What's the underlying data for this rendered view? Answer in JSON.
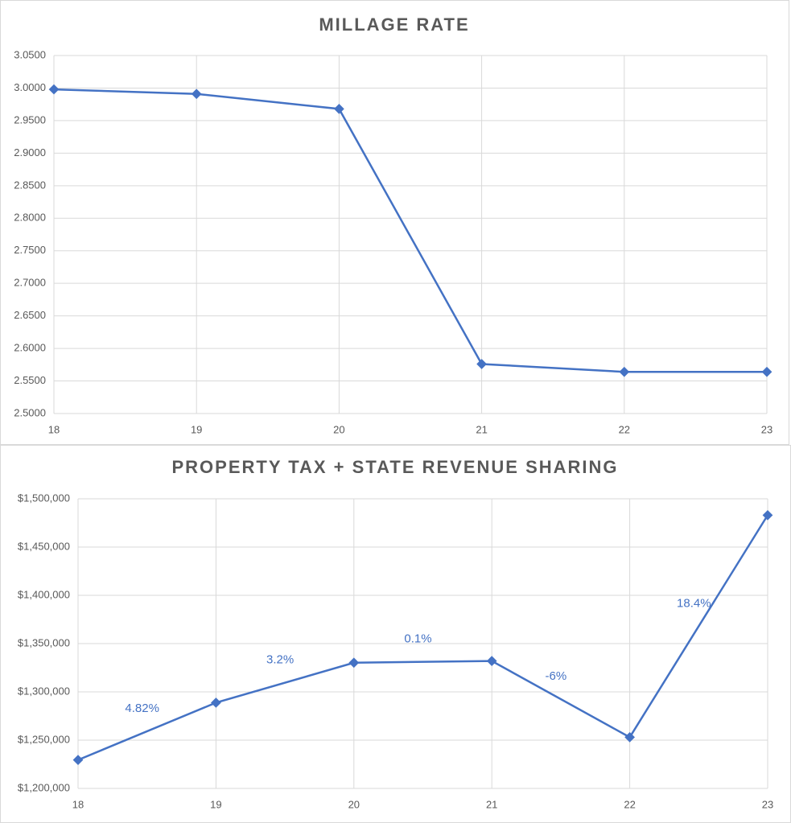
{
  "chart_data": [
    {
      "type": "line",
      "title": "MILLAGE RATE",
      "x": [
        18,
        19,
        20,
        21,
        22,
        23
      ],
      "series": [
        {
          "name": "Millage Rate",
          "color": "#4472c4",
          "values": [
            2.998,
            2.991,
            2.968,
            2.576,
            2.564,
            2.564
          ]
        }
      ],
      "xlim": [
        18,
        23
      ],
      "xticks": [
        18,
        19,
        20,
        21,
        22,
        23
      ],
      "ylim": [
        2.5,
        3.05
      ],
      "yticks": [
        {
          "value": 2.5,
          "label": "2.5000"
        },
        {
          "value": 2.55,
          "label": "2.5500"
        },
        {
          "value": 2.6,
          "label": "2.6000"
        },
        {
          "value": 2.65,
          "label": "2.6500"
        },
        {
          "value": 2.7,
          "label": "2.7000"
        },
        {
          "value": 2.75,
          "label": "2.7500"
        },
        {
          "value": 2.8,
          "label": "2.8000"
        },
        {
          "value": 2.85,
          "label": "2.8500"
        },
        {
          "value": 2.9,
          "label": "2.9000"
        },
        {
          "value": 2.95,
          "label": "2.9500"
        },
        {
          "value": 3.0,
          "label": "3.0000"
        },
        {
          "value": 3.05,
          "label": "3.0500"
        }
      ],
      "grid": true
    },
    {
      "type": "line",
      "title": "PROPERTY TAX + STATE REVENUE SHARING",
      "x": [
        18,
        19,
        20,
        21,
        22,
        23
      ],
      "series": [
        {
          "name": "Property Tax + State Revenue Sharing",
          "color": "#4472c4",
          "values": [
            1229500,
            1288800,
            1330200,
            1332000,
            1253000,
            1483000
          ]
        }
      ],
      "annotations": [
        "4.82%",
        "3.2%",
        "0.1%",
        "-6%",
        "18.4%"
      ],
      "xlim": [
        18,
        23
      ],
      "xticks": [
        18,
        19,
        20,
        21,
        22,
        23
      ],
      "ylim": [
        1200000,
        1500000
      ],
      "yticks": [
        {
          "value": 1200000,
          "label": "$1,200,000"
        },
        {
          "value": 1250000,
          "label": "$1,250,000"
        },
        {
          "value": 1300000,
          "label": "$1,300,000"
        },
        {
          "value": 1350000,
          "label": "$1,350,000"
        },
        {
          "value": 1400000,
          "label": "$1,400,000"
        },
        {
          "value": 1450000,
          "label": "$1,450,000"
        },
        {
          "value": 1500000,
          "label": "$1,500,000"
        }
      ],
      "grid": true
    }
  ]
}
